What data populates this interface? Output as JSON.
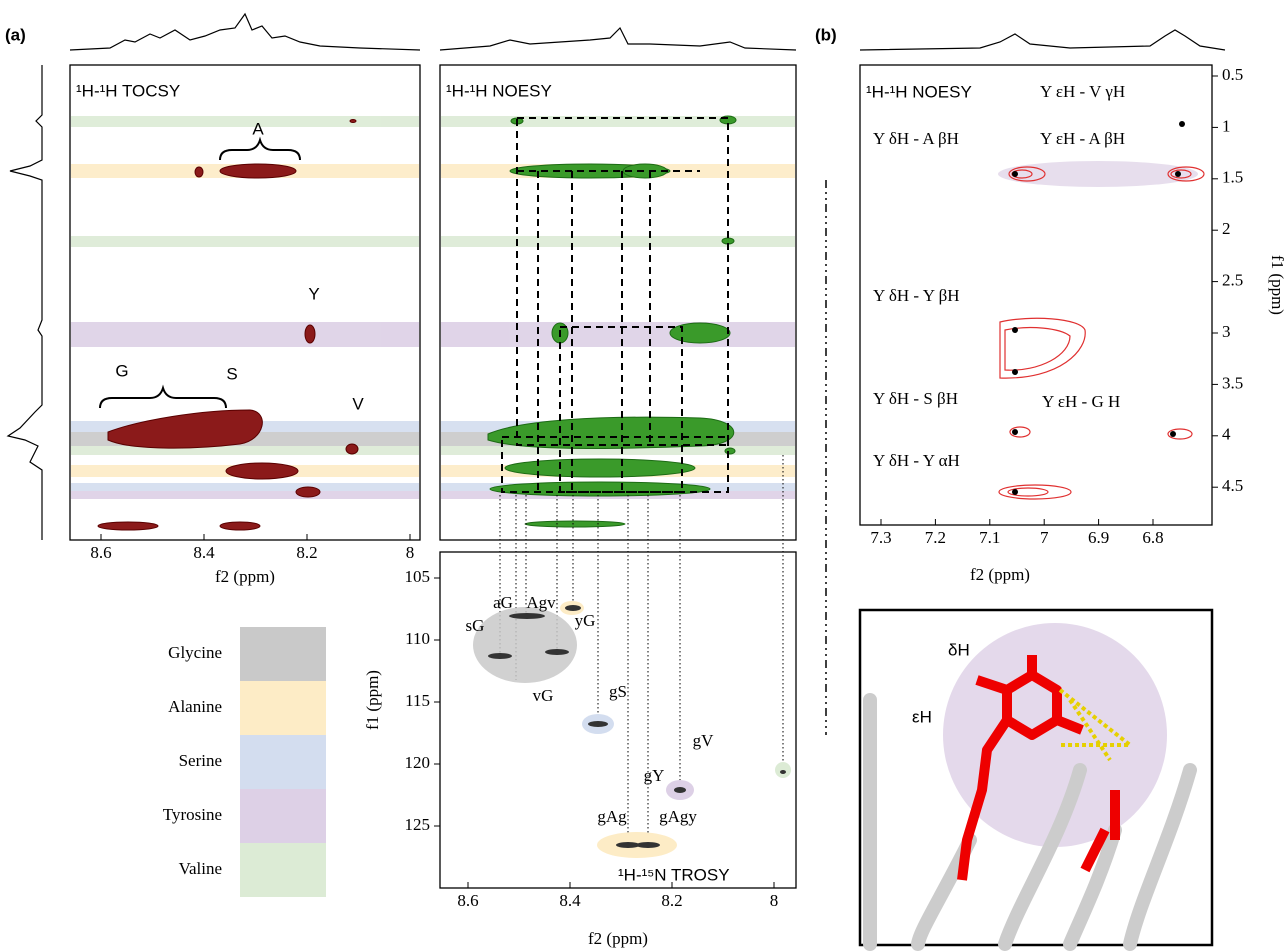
{
  "panel_labels": [
    "(a)",
    "(b)"
  ],
  "tocsy": {
    "title": "¹H-¹H TOCSY",
    "peak_labels": [
      "A",
      "Y",
      "G",
      "S",
      "V"
    ],
    "xticks": [
      8.6,
      8.4,
      8.2,
      8.0
    ],
    "x_label": "f2 (ppm)"
  },
  "noesy": {
    "title": "¹H-¹H NOESY"
  },
  "trosy": {
    "title": "¹H-¹⁵N TROSY",
    "peak_labels": [
      "aG",
      "Agv",
      "sG",
      "yG",
      "vG",
      "gS",
      "gY",
      "gV",
      "gAg",
      "gAgy"
    ],
    "xticks": [
      8.6,
      8.4,
      8.2,
      8.0
    ],
    "yticks": [
      105,
      110,
      115,
      120,
      125
    ],
    "x_label": "f2 (ppm)",
    "y_label": "f1 (ppm)"
  },
  "aromatic_noesy": {
    "title": "¹H-¹H NOESY",
    "annotations": [
      "Y εH - V γH",
      "Y δH - A βH",
      "Y εH - A βH",
      "Y δH - Y βH",
      "Y δH - S βH",
      "Y εH - G H",
      "Y δH - Y αH"
    ],
    "xticks": [
      7.3,
      7.2,
      7.1,
      7.0,
      6.9,
      6.8
    ],
    "yticks": [
      0.5,
      1.0,
      1.5,
      2.0,
      2.5,
      3.0,
      3.5,
      4.0,
      4.5
    ],
    "x_label": "f2 (ppm)",
    "y_label": "f1 (ppm)"
  },
  "legend": [
    {
      "name": "Glycine",
      "color": "#c9c9c9"
    },
    {
      "name": "Alanine",
      "color": "#fdecc6"
    },
    {
      "name": "Serine",
      "color": "#d3ddef"
    },
    {
      "name": "Tyrosine",
      "color": "#ddd0e6"
    },
    {
      "name": "Valine",
      "color": "#dcebd5"
    }
  ],
  "structure_labels": [
    "δH",
    "εH"
  ]
}
